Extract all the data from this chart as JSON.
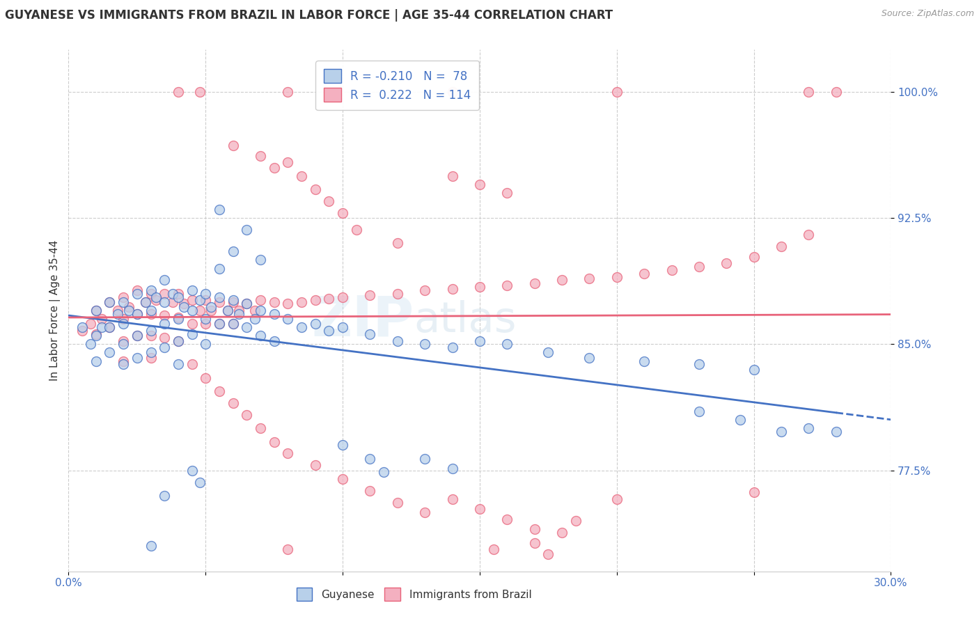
{
  "title": "GUYANESE VS IMMIGRANTS FROM BRAZIL IN LABOR FORCE | AGE 35-44 CORRELATION CHART",
  "source": "Source: ZipAtlas.com",
  "ylabel": "In Labor Force | Age 35-44",
  "xlim": [
    0.0,
    0.3
  ],
  "ylim": [
    0.715,
    1.025
  ],
  "yticks": [
    0.775,
    0.85,
    0.925,
    1.0
  ],
  "ytick_labels": [
    "77.5%",
    "85.0%",
    "92.5%",
    "100.0%"
  ],
  "xticks": [
    0.0,
    0.05,
    0.1,
    0.15,
    0.2,
    0.25,
    0.3
  ],
  "xtick_labels": [
    "0.0%",
    "",
    "",
    "",
    "",
    "",
    "30.0%"
  ],
  "legend_r_blue": "-0.210",
  "legend_n_blue": "78",
  "legend_r_pink": "0.222",
  "legend_n_pink": "114",
  "blue_color": "#b8d0ea",
  "pink_color": "#f4b0c0",
  "line_blue": "#4472c4",
  "line_pink": "#e8637a",
  "watermark": "ZIPatlas",
  "blue_scatter": [
    [
      0.005,
      0.86
    ],
    [
      0.008,
      0.85
    ],
    [
      0.01,
      0.87
    ],
    [
      0.01,
      0.855
    ],
    [
      0.01,
      0.84
    ],
    [
      0.012,
      0.86
    ],
    [
      0.015,
      0.875
    ],
    [
      0.015,
      0.86
    ],
    [
      0.015,
      0.845
    ],
    [
      0.018,
      0.868
    ],
    [
      0.02,
      0.875
    ],
    [
      0.02,
      0.862
    ],
    [
      0.02,
      0.85
    ],
    [
      0.02,
      0.838
    ],
    [
      0.022,
      0.87
    ],
    [
      0.025,
      0.88
    ],
    [
      0.025,
      0.868
    ],
    [
      0.025,
      0.855
    ],
    [
      0.025,
      0.842
    ],
    [
      0.028,
      0.875
    ],
    [
      0.03,
      0.882
    ],
    [
      0.03,
      0.87
    ],
    [
      0.03,
      0.858
    ],
    [
      0.03,
      0.845
    ],
    [
      0.032,
      0.878
    ],
    [
      0.035,
      0.888
    ],
    [
      0.035,
      0.875
    ],
    [
      0.035,
      0.862
    ],
    [
      0.035,
      0.848
    ],
    [
      0.038,
      0.88
    ],
    [
      0.04,
      0.878
    ],
    [
      0.04,
      0.865
    ],
    [
      0.04,
      0.852
    ],
    [
      0.04,
      0.838
    ],
    [
      0.042,
      0.872
    ],
    [
      0.045,
      0.882
    ],
    [
      0.045,
      0.87
    ],
    [
      0.045,
      0.856
    ],
    [
      0.048,
      0.876
    ],
    [
      0.05,
      0.88
    ],
    [
      0.05,
      0.865
    ],
    [
      0.05,
      0.85
    ],
    [
      0.052,
      0.872
    ],
    [
      0.055,
      0.878
    ],
    [
      0.055,
      0.862
    ],
    [
      0.058,
      0.87
    ],
    [
      0.06,
      0.876
    ],
    [
      0.06,
      0.862
    ],
    [
      0.062,
      0.868
    ],
    [
      0.065,
      0.874
    ],
    [
      0.065,
      0.86
    ],
    [
      0.068,
      0.865
    ],
    [
      0.07,
      0.87
    ],
    [
      0.07,
      0.855
    ],
    [
      0.075,
      0.868
    ],
    [
      0.075,
      0.852
    ],
    [
      0.08,
      0.865
    ],
    [
      0.085,
      0.86
    ],
    [
      0.09,
      0.862
    ],
    [
      0.095,
      0.858
    ],
    [
      0.1,
      0.86
    ],
    [
      0.11,
      0.856
    ],
    [
      0.12,
      0.852
    ],
    [
      0.13,
      0.85
    ],
    [
      0.14,
      0.848
    ],
    [
      0.15,
      0.852
    ],
    [
      0.16,
      0.85
    ],
    [
      0.175,
      0.845
    ],
    [
      0.19,
      0.842
    ],
    [
      0.21,
      0.84
    ],
    [
      0.23,
      0.838
    ],
    [
      0.25,
      0.835
    ],
    [
      0.055,
      0.93
    ],
    [
      0.065,
      0.918
    ],
    [
      0.06,
      0.905
    ],
    [
      0.055,
      0.895
    ],
    [
      0.07,
      0.9
    ],
    [
      0.03,
      0.73
    ],
    [
      0.035,
      0.76
    ],
    [
      0.045,
      0.775
    ],
    [
      0.048,
      0.768
    ],
    [
      0.1,
      0.79
    ],
    [
      0.11,
      0.782
    ],
    [
      0.115,
      0.774
    ],
    [
      0.13,
      0.782
    ],
    [
      0.14,
      0.776
    ],
    [
      0.23,
      0.81
    ],
    [
      0.245,
      0.805
    ],
    [
      0.26,
      0.798
    ],
    [
      0.27,
      0.8
    ],
    [
      0.28,
      0.798
    ]
  ],
  "pink_scatter": [
    [
      0.005,
      0.858
    ],
    [
      0.008,
      0.862
    ],
    [
      0.01,
      0.87
    ],
    [
      0.01,
      0.856
    ],
    [
      0.012,
      0.865
    ],
    [
      0.015,
      0.875
    ],
    [
      0.015,
      0.86
    ],
    [
      0.018,
      0.87
    ],
    [
      0.02,
      0.878
    ],
    [
      0.02,
      0.865
    ],
    [
      0.02,
      0.852
    ],
    [
      0.02,
      0.84
    ],
    [
      0.022,
      0.872
    ],
    [
      0.025,
      0.882
    ],
    [
      0.025,
      0.868
    ],
    [
      0.025,
      0.855
    ],
    [
      0.028,
      0.875
    ],
    [
      0.03,
      0.88
    ],
    [
      0.03,
      0.868
    ],
    [
      0.03,
      0.855
    ],
    [
      0.03,
      0.842
    ],
    [
      0.032,
      0.876
    ],
    [
      0.035,
      0.88
    ],
    [
      0.035,
      0.867
    ],
    [
      0.035,
      0.854
    ],
    [
      0.038,
      0.875
    ],
    [
      0.04,
      0.88
    ],
    [
      0.04,
      0.866
    ],
    [
      0.04,
      0.852
    ],
    [
      0.042,
      0.874
    ],
    [
      0.045,
      0.876
    ],
    [
      0.045,
      0.862
    ],
    [
      0.048,
      0.87
    ],
    [
      0.05,
      0.876
    ],
    [
      0.05,
      0.862
    ],
    [
      0.052,
      0.87
    ],
    [
      0.055,
      0.875
    ],
    [
      0.055,
      0.862
    ],
    [
      0.058,
      0.87
    ],
    [
      0.06,
      0.875
    ],
    [
      0.06,
      0.862
    ],
    [
      0.062,
      0.87
    ],
    [
      0.065,
      0.874
    ],
    [
      0.068,
      0.87
    ],
    [
      0.07,
      0.876
    ],
    [
      0.075,
      0.875
    ],
    [
      0.08,
      0.874
    ],
    [
      0.085,
      0.875
    ],
    [
      0.09,
      0.876
    ],
    [
      0.095,
      0.877
    ],
    [
      0.1,
      0.878
    ],
    [
      0.11,
      0.879
    ],
    [
      0.12,
      0.88
    ],
    [
      0.13,
      0.882
    ],
    [
      0.14,
      0.883
    ],
    [
      0.15,
      0.884
    ],
    [
      0.16,
      0.885
    ],
    [
      0.17,
      0.886
    ],
    [
      0.18,
      0.888
    ],
    [
      0.19,
      0.889
    ],
    [
      0.2,
      0.89
    ],
    [
      0.21,
      0.892
    ],
    [
      0.22,
      0.894
    ],
    [
      0.23,
      0.896
    ],
    [
      0.24,
      0.898
    ],
    [
      0.25,
      0.902
    ],
    [
      0.26,
      0.908
    ],
    [
      0.27,
      0.915
    ],
    [
      0.04,
      1.0
    ],
    [
      0.048,
      1.0
    ],
    [
      0.08,
      1.0
    ],
    [
      0.14,
      1.0
    ],
    [
      0.2,
      1.0
    ],
    [
      0.27,
      1.0
    ],
    [
      0.28,
      1.0
    ],
    [
      0.06,
      0.968
    ],
    [
      0.07,
      0.962
    ],
    [
      0.075,
      0.955
    ],
    [
      0.08,
      0.958
    ],
    [
      0.085,
      0.95
    ],
    [
      0.09,
      0.942
    ],
    [
      0.095,
      0.935
    ],
    [
      0.1,
      0.928
    ],
    [
      0.105,
      0.918
    ],
    [
      0.12,
      0.91
    ],
    [
      0.14,
      0.95
    ],
    [
      0.15,
      0.945
    ],
    [
      0.16,
      0.94
    ],
    [
      0.045,
      0.838
    ],
    [
      0.05,
      0.83
    ],
    [
      0.055,
      0.822
    ],
    [
      0.06,
      0.815
    ],
    [
      0.065,
      0.808
    ],
    [
      0.07,
      0.8
    ],
    [
      0.075,
      0.792
    ],
    [
      0.08,
      0.785
    ],
    [
      0.09,
      0.778
    ],
    [
      0.1,
      0.77
    ],
    [
      0.11,
      0.763
    ],
    [
      0.12,
      0.756
    ],
    [
      0.13,
      0.75
    ],
    [
      0.14,
      0.758
    ],
    [
      0.15,
      0.752
    ],
    [
      0.16,
      0.746
    ],
    [
      0.17,
      0.74
    ],
    [
      0.2,
      0.758
    ],
    [
      0.25,
      0.762
    ],
    [
      0.08,
      0.728
    ],
    [
      0.17,
      0.732
    ],
    [
      0.175,
      0.725
    ],
    [
      0.18,
      0.738
    ],
    [
      0.185,
      0.745
    ],
    [
      0.155,
      0.728
    ]
  ]
}
